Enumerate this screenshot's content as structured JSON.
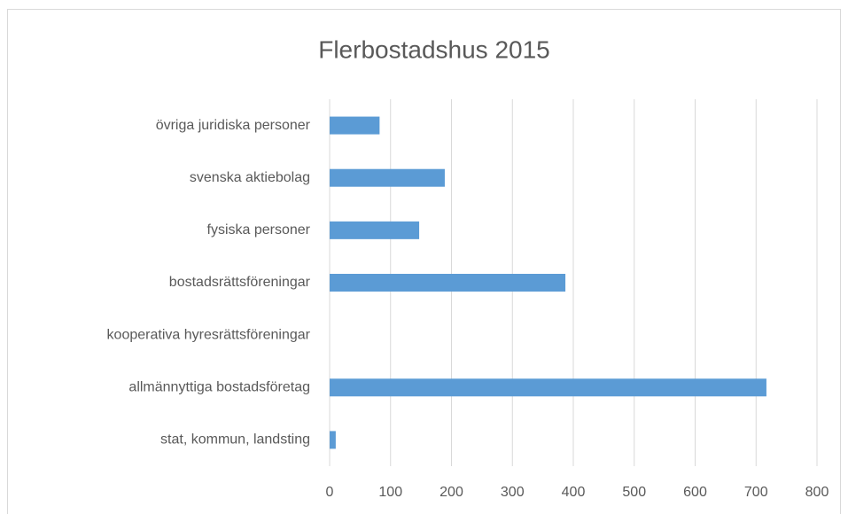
{
  "chart_data": {
    "type": "hbar",
    "title": "Flerbostadshus 2015",
    "categories": [
      "övriga juridiska personer",
      "svenska aktiebolag",
      "fysiska personer",
      "bostadsrättsföreningar",
      "kooperativa hyresrättsföreningar",
      "allmännyttiga bostadsföretag",
      "stat, kommun, landsting"
    ],
    "values": [
      82,
      189,
      147,
      387,
      0,
      717,
      10
    ],
    "color": "#5b9bd5",
    "xlim": [
      0,
      800
    ],
    "xticks": [
      0,
      100,
      200,
      300,
      400,
      500,
      600,
      700,
      800
    ],
    "grid": true
  }
}
